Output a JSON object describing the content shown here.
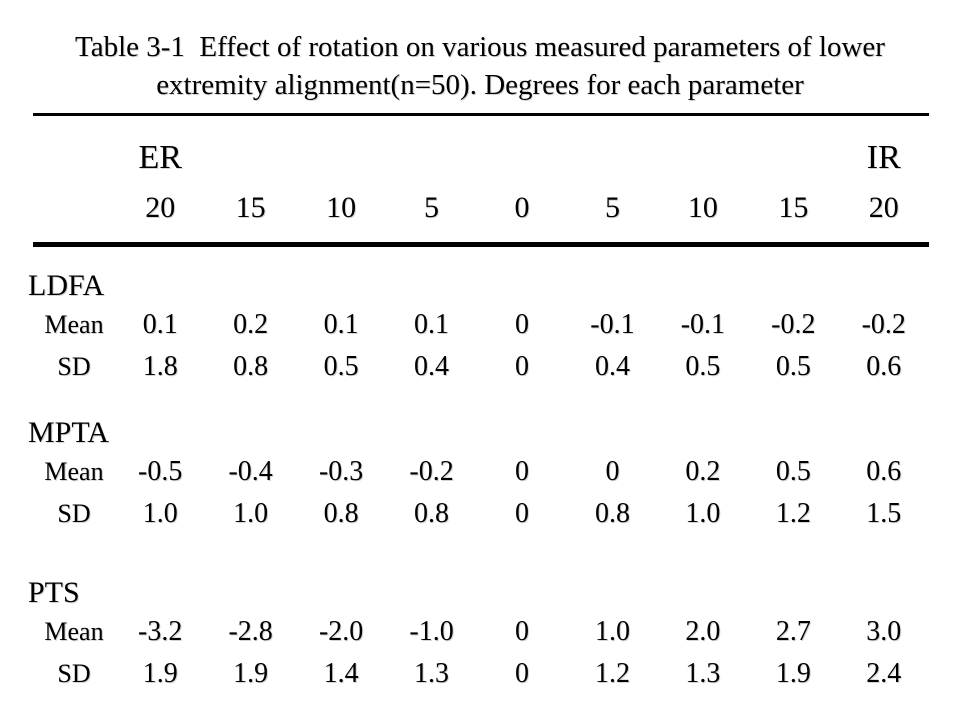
{
  "page": {
    "background": "#ffffff",
    "text_color": "#000000"
  },
  "title": {
    "line1": "Table 3-1  Effect of rotation on various measured parameters of lower",
    "line2": "extremity alignment(n=50). Degrees for each parameter"
  },
  "header": {
    "left_direction": "ER",
    "right_direction": "IR",
    "degrees": [
      "20",
      "15",
      "10",
      "5",
      "0",
      "5",
      "10",
      "15",
      "20"
    ]
  },
  "table": {
    "sections": [
      {
        "label": "LDFA",
        "rows": [
          {
            "label": "Mean",
            "values": [
              "0.1",
              "0.2",
              "0.1",
              "0.1",
              "0",
              "-0.1",
              "-0.1",
              "-0.2",
              "-0.2"
            ]
          },
          {
            "label": "SD",
            "values": [
              "1.8",
              "0.8",
              "0.5",
              "0.4",
              "0",
              "0.4",
              "0.5",
              "0.5",
              "0.6"
            ]
          }
        ]
      },
      {
        "label": "MPTA",
        "rows": [
          {
            "label": "Mean",
            "values": [
              "-0.5",
              "-0.4",
              "-0.3",
              "-0.2",
              "0",
              "0",
              "0.2",
              "0.5",
              "0.6"
            ]
          },
          {
            "label": "SD",
            "values": [
              "1.0",
              "1.0",
              "0.8",
              "0.8",
              "0",
              "0.8",
              "1.0",
              "1.2",
              "1.5"
            ]
          }
        ]
      },
      {
        "label": "PTS",
        "rows": [
          {
            "label": "Mean",
            "values": [
              "-3.2",
              "-2.8",
              "-2.0",
              "-1.0",
              "0",
              "1.0",
              "2.0",
              "2.7",
              "3.0"
            ]
          },
          {
            "label": "SD",
            "values": [
              "1.9",
              "1.9",
              "1.4",
              "1.3",
              "0",
              "1.2",
              "1.3",
              "1.9",
              "2.4"
            ]
          }
        ]
      }
    ]
  }
}
